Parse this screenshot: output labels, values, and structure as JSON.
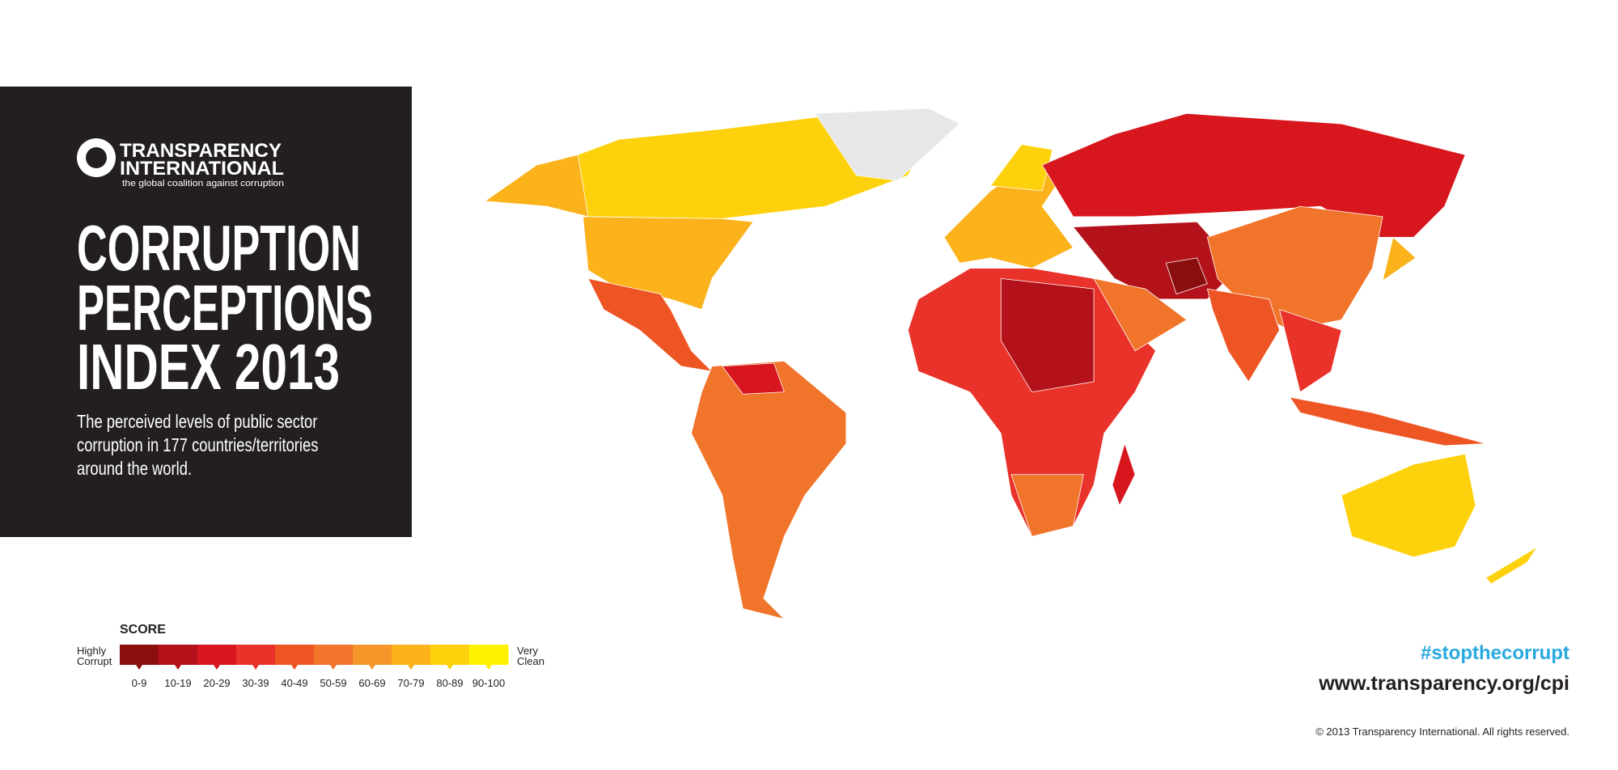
{
  "header": {
    "logo": {
      "line1": "TRANSPARENCY",
      "line2": "INTERNATIONAL",
      "tagline": "the global coalition against corruption"
    },
    "title": [
      "CORRUPTION",
      "PERCEPTIONS",
      "INDEX 2013"
    ],
    "description": [
      "The perceived levels of public sector",
      "corruption in 177 countries/territories",
      "around the world."
    ]
  },
  "legend": {
    "title": "SCORE",
    "low": [
      "Highly",
      "Corrupt"
    ],
    "high": [
      "Very",
      "Clean"
    ],
    "bins": [
      {
        "label": "0-9",
        "color": "#8b0e0e"
      },
      {
        "label": "10-19",
        "color": "#b3121a"
      },
      {
        "label": "20-29",
        "color": "#d7161d"
      },
      {
        "label": "30-39",
        "color": "#e8322a"
      },
      {
        "label": "40-49",
        "color": "#ee5524"
      },
      {
        "label": "50-59",
        "color": "#f0742a"
      },
      {
        "label": "60-69",
        "color": "#f6952a"
      },
      {
        "label": "70-79",
        "color": "#fbb21b"
      },
      {
        "label": "80-89",
        "color": "#fdd20c"
      },
      {
        "label": "90-100",
        "color": "#fff200"
      }
    ]
  },
  "footer": {
    "hashtag": "#stopthecorrupt",
    "url": "www.transparency.org/cpi",
    "copyright": "© 2013 Transparency International. All rights reserved."
  }
}
